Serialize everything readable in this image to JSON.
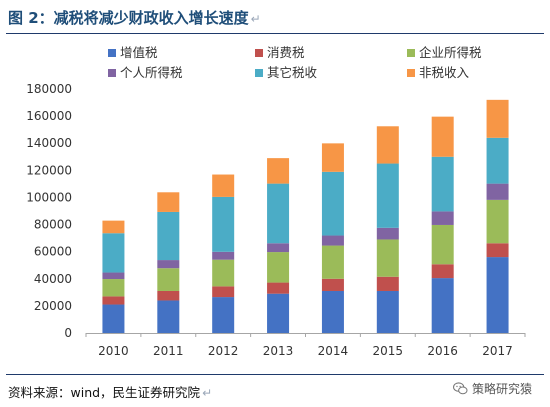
{
  "header": {
    "title": "图 2：减税将减少财政收入增长速度",
    "title_mark": "↵"
  },
  "footer": {
    "source": "资料来源：wind，民生证券研究院",
    "source_mark": "↵",
    "watermark": "策略研究猿"
  },
  "chart_data": {
    "type": "bar",
    "stacked": true,
    "categories": [
      "2010",
      "2011",
      "2012",
      "2013",
      "2014",
      "2015",
      "2016",
      "2017"
    ],
    "ylim": [
      0,
      180000
    ],
    "yticks": [
      0,
      20000,
      40000,
      60000,
      80000,
      100000,
      120000,
      140000,
      160000,
      180000
    ],
    "grid": false,
    "legend_position": "top",
    "series": [
      {
        "name": "增值税",
        "color": "#4472c4",
        "values": [
          21000,
          24000,
          26500,
          29000,
          31000,
          31000,
          40500,
          56000
        ]
      },
      {
        "name": "消费税",
        "color": "#c0504d",
        "values": [
          6000,
          7000,
          7900,
          8200,
          9000,
          10500,
          10200,
          10200
        ]
      },
      {
        "name": "企业所得税",
        "color": "#9bbb59",
        "values": [
          12800,
          16800,
          19700,
          22500,
          24500,
          27500,
          29000,
          32000
        ]
      },
      {
        "name": "个人所得税",
        "color": "#8064a2",
        "values": [
          4800,
          6000,
          5800,
          6500,
          7400,
          8600,
          10000,
          12000
        ]
      },
      {
        "name": "其它税收",
        "color": "#4bacc6",
        "values": [
          29000,
          35500,
          40500,
          44000,
          47000,
          47400,
          40300,
          33800
        ]
      },
      {
        "name": "非税收入",
        "color": "#f79646",
        "values": [
          9300,
          14500,
          16500,
          18800,
          21000,
          27500,
          29600,
          28000
        ]
      }
    ]
  }
}
